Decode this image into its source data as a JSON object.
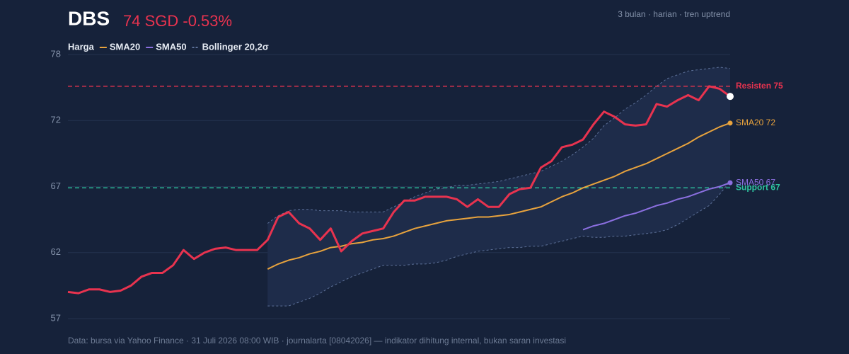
{
  "chart_data": {
    "type": "line",
    "title": "DBS",
    "subtitle": "74 SGD -0.53%",
    "annotation": "3 bulan · harian · tren uptrend",
    "source": "Data: bursa via Yahoo Finance · 31 Juli 2026 08:00 WIB · journalarta [08042026] — indikator dihitung internal, bukan saran investasi",
    "ylim": [
      56.7,
      77.5
    ],
    "yticks": [
      {
        "value": 56.7,
        "label": "57"
      },
      {
        "value": 61.9,
        "label": "62"
      },
      {
        "value": 67.1,
        "label": "67"
      },
      {
        "value": 72.3,
        "label": "72"
      },
      {
        "value": 77.5,
        "label": "78"
      }
    ],
    "grid": true,
    "series": [
      {
        "name": "Harga",
        "color": "#e8334f",
        "values": [
          58.8,
          58.7,
          59.0,
          59.0,
          58.8,
          58.9,
          59.3,
          60.0,
          60.3,
          60.3,
          60.9,
          62.1,
          61.4,
          61.9,
          62.2,
          62.3,
          62.1,
          62.1,
          62.1,
          62.9,
          64.7,
          65.1,
          64.2,
          63.8,
          62.9,
          63.8,
          62.0,
          62.8,
          63.4,
          63.6,
          63.8,
          65.1,
          66.0,
          66.0,
          66.3,
          66.3,
          66.3,
          66.1,
          65.5,
          66.1,
          65.5,
          65.5,
          66.5,
          66.9,
          67.0,
          68.6,
          69.1,
          70.2,
          70.4,
          70.8,
          72.0,
          73.0,
          72.6,
          72.0,
          71.9,
          72.0,
          73.6,
          73.4,
          73.9,
          74.3,
          73.9,
          75.0,
          74.8,
          74.2
        ]
      },
      {
        "name": "SMA20",
        "color": "#e8a33d",
        "end_label": "SMA20 72",
        "values": [
          null,
          null,
          null,
          null,
          null,
          null,
          null,
          null,
          null,
          null,
          null,
          null,
          null,
          null,
          null,
          null,
          null,
          null,
          null,
          60.6,
          61.0,
          61.3,
          61.5,
          61.8,
          62.0,
          62.3,
          62.4,
          62.6,
          62.7,
          62.9,
          63.0,
          63.2,
          63.5,
          63.8,
          64.0,
          64.2,
          64.4,
          64.5,
          64.6,
          64.7,
          64.7,
          64.8,
          64.9,
          65.1,
          65.3,
          65.5,
          65.9,
          66.3,
          66.6,
          67.0,
          67.3,
          67.6,
          67.9,
          68.3,
          68.6,
          68.9,
          69.3,
          69.7,
          70.1,
          70.5,
          71.0,
          71.4,
          71.8,
          72.1
        ]
      },
      {
        "name": "SMA50",
        "color": "#8b6fe0",
        "end_label": "SMA50 67",
        "values": [
          null,
          null,
          null,
          null,
          null,
          null,
          null,
          null,
          null,
          null,
          null,
          null,
          null,
          null,
          null,
          null,
          null,
          null,
          null,
          null,
          null,
          null,
          null,
          null,
          null,
          null,
          null,
          null,
          null,
          null,
          null,
          null,
          null,
          null,
          null,
          null,
          null,
          null,
          null,
          null,
          null,
          null,
          null,
          null,
          null,
          null,
          null,
          null,
          null,
          63.7,
          64.0,
          64.2,
          64.5,
          64.8,
          65.0,
          65.3,
          65.6,
          65.8,
          66.1,
          66.3,
          66.6,
          66.9,
          67.1,
          67.4
        ]
      }
    ],
    "bands": {
      "name": "Bollinger 20,2σ",
      "color": "#5d7199",
      "upper": [
        null,
        null,
        null,
        null,
        null,
        null,
        null,
        null,
        null,
        null,
        null,
        null,
        null,
        null,
        null,
        null,
        null,
        null,
        null,
        64.2,
        64.8,
        65.2,
        65.3,
        65.3,
        65.2,
        65.2,
        65.2,
        65.1,
        65.1,
        65.1,
        65.1,
        65.5,
        65.9,
        66.3,
        66.6,
        66.9,
        67.0,
        67.2,
        67.2,
        67.3,
        67.4,
        67.5,
        67.7,
        67.9,
        68.1,
        68.3,
        68.7,
        69.1,
        69.6,
        70.2,
        70.9,
        71.9,
        72.5,
        73.2,
        73.7,
        74.3,
        75.0,
        75.6,
        75.9,
        76.2,
        76.3,
        76.4,
        76.5,
        76.4
      ],
      "lower": [
        null,
        null,
        null,
        null,
        null,
        null,
        null,
        null,
        null,
        null,
        null,
        null,
        null,
        null,
        null,
        null,
        null,
        null,
        null,
        57.7,
        57.7,
        57.7,
        58.0,
        58.3,
        58.7,
        59.2,
        59.6,
        60.0,
        60.3,
        60.6,
        60.9,
        60.9,
        60.9,
        61.0,
        61.0,
        61.1,
        61.3,
        61.6,
        61.8,
        62.0,
        62.1,
        62.2,
        62.3,
        62.3,
        62.4,
        62.4,
        62.6,
        62.8,
        63.0,
        63.2,
        63.1,
        63.1,
        63.2,
        63.2,
        63.3,
        63.4,
        63.5,
        63.7,
        64.1,
        64.6,
        65.1,
        65.6,
        66.5,
        67.5
      ]
    },
    "reference_lines": [
      {
        "value": 75,
        "label": "Resisten 75",
        "color": "#e8334f"
      },
      {
        "value": 67,
        "label": "Support 67",
        "color": "#2ec4a0"
      }
    ]
  }
}
